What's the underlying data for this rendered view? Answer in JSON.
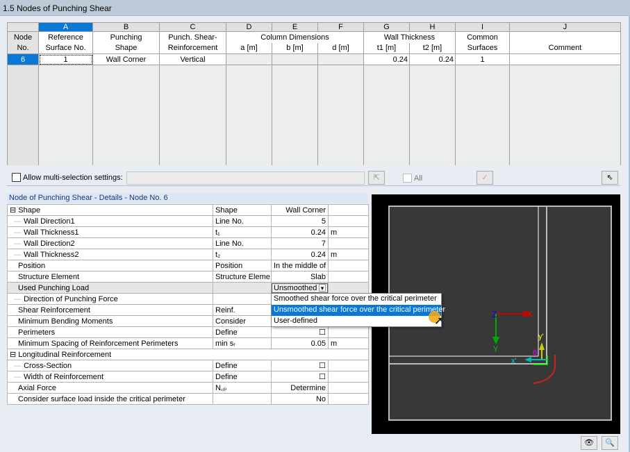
{
  "title": "1.5 Nodes of Punching Shear",
  "table": {
    "letters": [
      "A",
      "B",
      "C",
      "D",
      "E",
      "F",
      "G",
      "H",
      "I",
      "J"
    ],
    "header1": [
      "Node",
      "Reference",
      "Punching",
      "Punch. Shear-",
      "Column Dimensions",
      "Wall Thickness",
      "Common",
      ""
    ],
    "header2": [
      "No.",
      "Surface No.",
      "Shape",
      "Reinforcement",
      "a [m]",
      "b [m]",
      "d [m]",
      "t1 [m]",
      "t2 [m]",
      "Surfaces",
      "Comment"
    ],
    "rows": [
      {
        "node": "6",
        "ref": "1",
        "shape": "Wall Corner",
        "reinf": "Vertical",
        "a": "",
        "b": "",
        "d": "",
        "t1": "0.24",
        "t2": "0.24",
        "common": "1",
        "comment": ""
      }
    ]
  },
  "toolbar": {
    "multi_label": "Allow multi-selection settings:",
    "all_label": "All"
  },
  "details": {
    "title": "Node of Punching Shear - Details - Node No.  6",
    "rows": [
      {
        "label": "Shape",
        "sym": "Shape",
        "val": "Wall Corner",
        "unit": "",
        "lvl": 0,
        "exp": true
      },
      {
        "label": "Wall Direction1",
        "sym": "Line No.",
        "val": "5",
        "unit": "",
        "lvl": 1
      },
      {
        "label": "Wall Thickness1",
        "sym": "t₁",
        "val": "0.24",
        "unit": "m",
        "lvl": 1
      },
      {
        "label": "Wall Direction2",
        "sym": "Line No.",
        "val": "7",
        "unit": "",
        "lvl": 1
      },
      {
        "label": "Wall Thickness2",
        "sym": "t₂",
        "val": "0.24",
        "unit": "m",
        "lvl": 1
      },
      {
        "label": "Position",
        "sym": "Position",
        "val": "In the middle of",
        "unit": "",
        "lvl": 0
      },
      {
        "label": "Structure Element",
        "sym": "Structure Eleme",
        "val": "Slab",
        "unit": "",
        "lvl": 0
      },
      {
        "label": "Used Punching Load",
        "sym": "",
        "val": "Unsmoothed",
        "unit": "",
        "lvl": 0,
        "hl": true,
        "dd": true
      },
      {
        "label": "Direction of Punching Force",
        "sym": "",
        "val": "",
        "unit": "",
        "lvl": 1
      },
      {
        "label": "Shear Reinforcement",
        "sym": "Reinf.",
        "val": "",
        "unit": "",
        "lvl": 0
      },
      {
        "label": "Minimum Bending Moments",
        "sym": "Consider",
        "val": "",
        "unit": "",
        "lvl": 0
      },
      {
        "label": "Perimeters",
        "sym": "Define",
        "val": "☐",
        "unit": "",
        "lvl": 0
      },
      {
        "label": "Minimum Spacing of Reinforcement Perimeters",
        "sym": "min sᵣ",
        "val": "0.05",
        "unit": "m",
        "lvl": 0
      },
      {
        "label": "Longitudinal Reinforcement",
        "sym": "",
        "val": "",
        "unit": "",
        "lvl": 0,
        "exp": true,
        "span": true
      },
      {
        "label": "Cross-Section",
        "sym": "Define",
        "val": "☐",
        "unit": "",
        "lvl": 1
      },
      {
        "label": "Width of Reinforcement",
        "sym": "Define",
        "val": "☐",
        "unit": "",
        "lvl": 1
      },
      {
        "label": "Axial Force",
        "sym": "N꜀ₚ",
        "val": "Determine",
        "unit": "",
        "lvl": 0
      },
      {
        "label": "Consider surface load inside the critical perimeter",
        "sym": "",
        "val": "No",
        "unit": "",
        "lvl": 0
      }
    ]
  },
  "dropdown": {
    "options": [
      "Smoothed shear force over the critical perimeter",
      "Unsmoothed shear force over the critical perimeter",
      "User-defined"
    ],
    "selected": 1
  },
  "graphic": {
    "axes": {
      "x": "X",
      "y": "Y",
      "z": "Z",
      "xl": "x'",
      "yl": "y'"
    },
    "node": "6"
  }
}
